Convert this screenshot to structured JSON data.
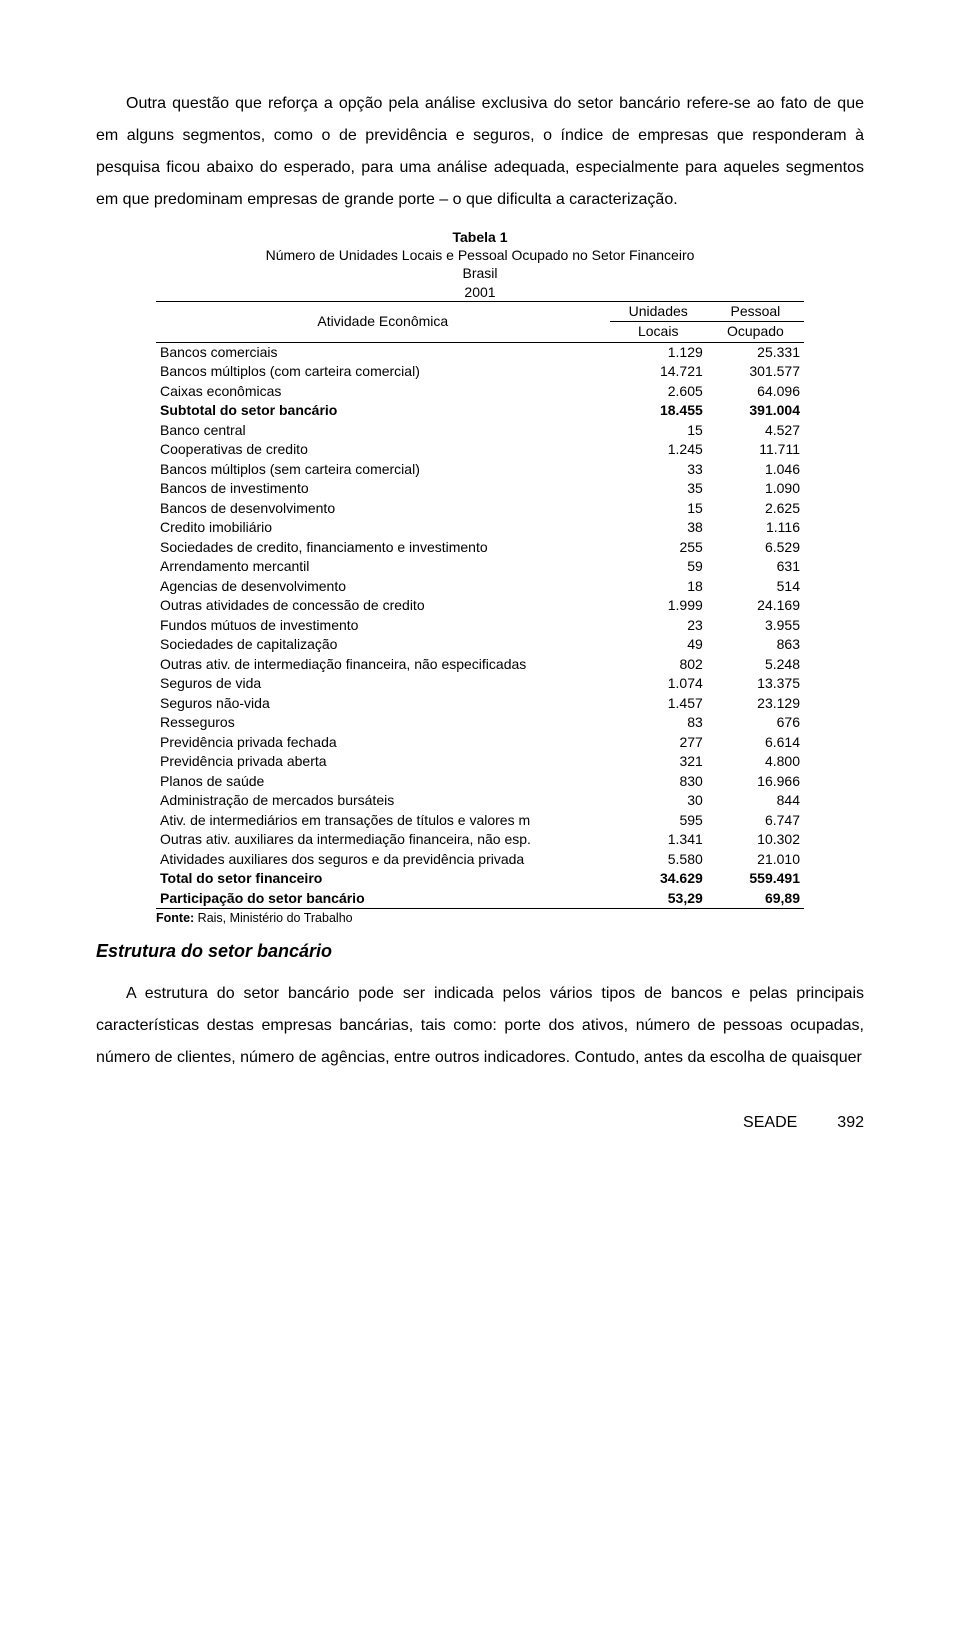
{
  "para1": "Outra questão que reforça a opção pela análise exclusiva do setor bancário refere-se ao fato de que em alguns segmentos, como o de previdência e seguros, o índice de empresas que responderam à pesquisa ficou abaixo do esperado, para uma análise adequada, especialmente para aqueles segmentos em que predominam empresas de grande porte – o que dificulta a caracterização.",
  "table": {
    "title": "Tabela 1",
    "subtitle1": "Número de Unidades Locais e Pessoal Ocupado no Setor Financeiro",
    "subtitle2": "Brasil",
    "subtitle3": "2001",
    "col0": "Atividade Econômica",
    "col1a": "Unidades",
    "col1b": "Locais",
    "col2a": "Pessoal",
    "col2b": "Ocupado",
    "rows": [
      {
        "label": "Bancos comerciais",
        "c1": "1.129",
        "c2": "25.331",
        "bold": false
      },
      {
        "label": "Bancos múltiplos (com carteira comercial)",
        "c1": "14.721",
        "c2": "301.577",
        "bold": false
      },
      {
        "label": "Caixas econômicas",
        "c1": "2.605",
        "c2": "64.096",
        "bold": false
      },
      {
        "label": "Subtotal do setor bancário",
        "c1": "18.455",
        "c2": "391.004",
        "bold": true
      },
      {
        "label": "Banco central",
        "c1": "15",
        "c2": "4.527",
        "bold": false
      },
      {
        "label": "Cooperativas de credito",
        "c1": "1.245",
        "c2": "11.711",
        "bold": false
      },
      {
        "label": "Bancos múltiplos (sem carteira comercial)",
        "c1": "33",
        "c2": "1.046",
        "bold": false
      },
      {
        "label": "Bancos de investimento",
        "c1": "35",
        "c2": "1.090",
        "bold": false
      },
      {
        "label": "Bancos de desenvolvimento",
        "c1": "15",
        "c2": "2.625",
        "bold": false
      },
      {
        "label": "Credito imobiliário",
        "c1": "38",
        "c2": "1.116",
        "bold": false
      },
      {
        "label": "Sociedades de credito, financiamento e investimento",
        "c1": "255",
        "c2": "6.529",
        "bold": false
      },
      {
        "label": "Arrendamento mercantil",
        "c1": "59",
        "c2": "631",
        "bold": false
      },
      {
        "label": "Agencias de desenvolvimento",
        "c1": "18",
        "c2": "514",
        "bold": false
      },
      {
        "label": "Outras atividades de concessão de credito",
        "c1": "1.999",
        "c2": "24.169",
        "bold": false
      },
      {
        "label": "Fundos mútuos de investimento",
        "c1": "23",
        "c2": "3.955",
        "bold": false
      },
      {
        "label": "Sociedades de capitalização",
        "c1": "49",
        "c2": "863",
        "bold": false
      },
      {
        "label": "Outras ativ. de intermediação financeira, não especificadas",
        "c1": "802",
        "c2": "5.248",
        "bold": false
      },
      {
        "label": "Seguros de vida",
        "c1": "1.074",
        "c2": "13.375",
        "bold": false
      },
      {
        "label": "Seguros não-vida",
        "c1": "1.457",
        "c2": "23.129",
        "bold": false
      },
      {
        "label": "Resseguros",
        "c1": "83",
        "c2": "676",
        "bold": false
      },
      {
        "label": "Previdência privada fechada",
        "c1": "277",
        "c2": "6.614",
        "bold": false
      },
      {
        "label": "Previdência privada aberta",
        "c1": "321",
        "c2": "4.800",
        "bold": false
      },
      {
        "label": "Planos de saúde",
        "c1": "830",
        "c2": "16.966",
        "bold": false
      },
      {
        "label": "Administração de mercados bursáteis",
        "c1": "30",
        "c2": "844",
        "bold": false
      },
      {
        "label": "Ativ. de intermediários em transações de títulos e valores m",
        "c1": "595",
        "c2": "6.747",
        "bold": false
      },
      {
        "label": "Outras ativ. auxiliares da intermediação financeira, não esp.",
        "c1": "1.341",
        "c2": "10.302",
        "bold": false
      },
      {
        "label": "Atividades auxiliares dos seguros e da previdência privada",
        "c1": "5.580",
        "c2": "21.010",
        "bold": false
      },
      {
        "label": "Total do setor financeiro",
        "c1": "34.629",
        "c2": "559.491",
        "bold": true
      },
      {
        "label": "Participação do setor bancário",
        "c1": "53,29",
        "c2": "69,89",
        "bold": true
      }
    ],
    "source_label": "Fonte:",
    "source_text": " Rais, Ministério do Trabalho"
  },
  "heading2": "Estrutura do setor bancário",
  "para2": "A estrutura do setor bancário pode ser indicada pelos vários tipos de bancos e pelas principais características destas empresas bancárias, tais como: porte dos ativos, número de pessoas ocupadas, número de clientes, número de agências, entre outros indicadores. Contudo, antes da escolha de quaisquer",
  "footer": {
    "org": "SEADE",
    "page": "392"
  }
}
